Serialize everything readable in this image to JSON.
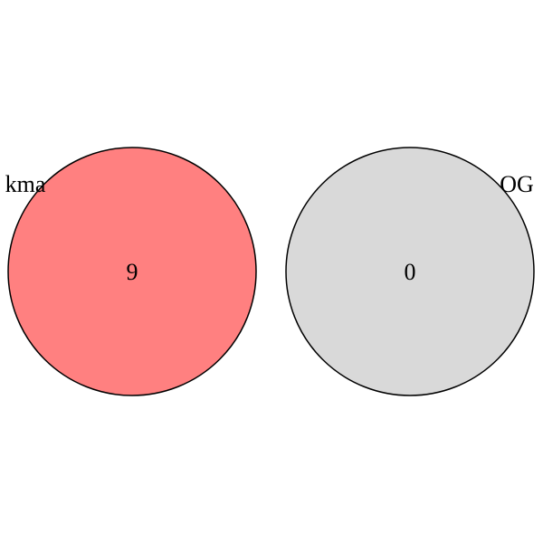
{
  "venn": {
    "sets": [
      {
        "label": "kma",
        "count": "9",
        "color": "#ff8080"
      },
      {
        "label": "OG",
        "count": "0",
        "color": "#d9d9d9"
      }
    ],
    "outline_color": "#000000"
  }
}
